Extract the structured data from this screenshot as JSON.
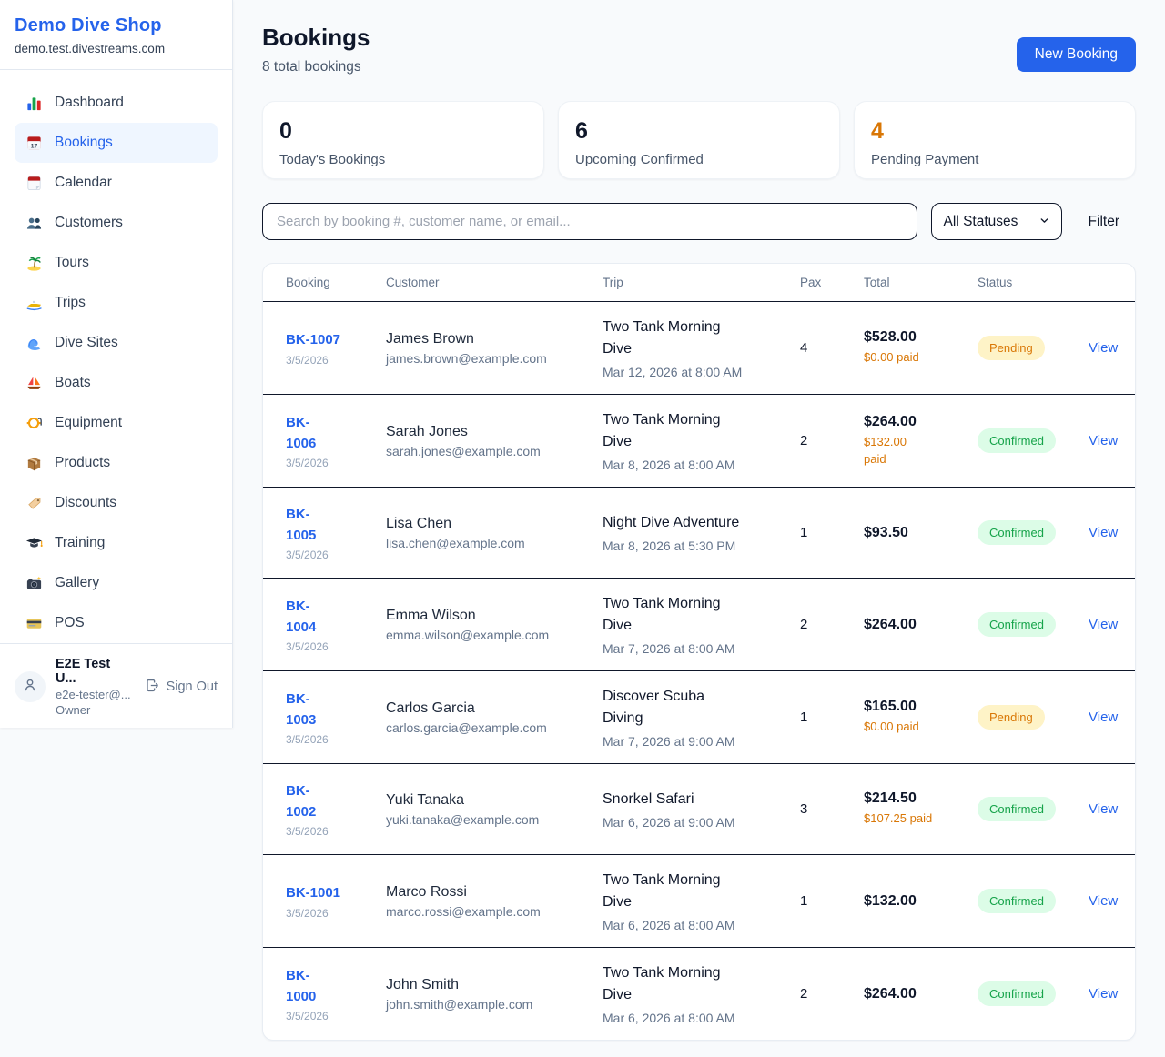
{
  "brand": {
    "name": "Demo Dive Shop",
    "domain": "demo.test.divestreams.com"
  },
  "sidebar": {
    "items": [
      {
        "label": "Dashboard",
        "icon": "bar-chart-icon",
        "active": false
      },
      {
        "label": "Bookings",
        "icon": "calendar-date-icon",
        "active": true
      },
      {
        "label": "Calendar",
        "icon": "tear-off-calendar-icon",
        "active": false
      },
      {
        "label": "Customers",
        "icon": "people-icon",
        "active": false
      },
      {
        "label": "Tours",
        "icon": "island-icon",
        "active": false
      },
      {
        "label": "Trips",
        "icon": "speedboat-icon",
        "active": false
      },
      {
        "label": "Dive Sites",
        "icon": "wave-icon",
        "active": false
      },
      {
        "label": "Boats",
        "icon": "sailboat-icon",
        "active": false
      },
      {
        "label": "Equipment",
        "icon": "diving-mask-icon",
        "active": false
      },
      {
        "label": "Products",
        "icon": "package-icon",
        "active": false
      },
      {
        "label": "Discounts",
        "icon": "tag-icon",
        "active": false
      },
      {
        "label": "Training",
        "icon": "graduation-cap-icon",
        "active": false
      },
      {
        "label": "Gallery",
        "icon": "camera-icon",
        "active": false
      },
      {
        "label": "POS",
        "icon": "credit-card-icon",
        "active": false
      }
    ],
    "user": {
      "name": "E2E Test U...",
      "email": "e2e-tester@...",
      "role": "Owner",
      "sign_out_label": "Sign Out"
    }
  },
  "header": {
    "title": "Bookings",
    "subtitle": "8 total bookings",
    "new_booking_label": "New Booking"
  },
  "stats": {
    "cards": [
      {
        "value": "0",
        "label": "Today's Bookings",
        "color": "#0f172a"
      },
      {
        "value": "6",
        "label": "Upcoming Confirmed",
        "color": "#0f172a"
      },
      {
        "value": "4",
        "label": "Pending Payment",
        "color": "#d97706"
      }
    ]
  },
  "filters": {
    "search_placeholder": "Search by booking #, customer name, or email...",
    "status_select_value": "All Statuses",
    "filter_label": "Filter"
  },
  "table": {
    "columns": [
      "Booking",
      "Customer",
      "Trip",
      "Pax",
      "Total",
      "Status"
    ],
    "view_label": "View",
    "paid_color": "#d97706",
    "statuses": {
      "Pending": {
        "bg": "#fef3c7",
        "text": "#d97706"
      },
      "Confirmed": {
        "bg": "#dcfce7",
        "text": "#16a34a"
      }
    },
    "rows": [
      {
        "id": "BK-1007",
        "id_wrap": false,
        "date": "3/5/2026",
        "customer": "James Brown",
        "email": "james.brown@example.com",
        "trip": "Two Tank Morning Dive",
        "trip_wrap": true,
        "trip_datetime": "Mar 12, 2026 at 8:00 AM",
        "pax": "4",
        "total": "$528.00",
        "paid": "$0.00 paid",
        "paid_wrap": false,
        "status": "Pending"
      },
      {
        "id": "BK-1006",
        "id_wrap": true,
        "date": "3/5/2026",
        "customer": "Sarah Jones",
        "email": "sarah.jones@example.com",
        "trip": "Two Tank Morning Dive",
        "trip_wrap": true,
        "trip_datetime": "Mar 8, 2026 at 8:00 AM",
        "pax": "2",
        "total": "$264.00",
        "paid": "$132.00 paid",
        "paid_wrap": true,
        "status": "Confirmed"
      },
      {
        "id": "BK-1005",
        "id_wrap": true,
        "date": "3/5/2026",
        "customer": "Lisa Chen",
        "email": "lisa.chen@example.com",
        "trip": "Night Dive Adventure",
        "trip_wrap": false,
        "trip_datetime": "Mar 8, 2026 at 5:30 PM",
        "pax": "1",
        "total": "$93.50",
        "paid": null,
        "paid_wrap": false,
        "status": "Confirmed"
      },
      {
        "id": "BK-1004",
        "id_wrap": true,
        "date": "3/5/2026",
        "customer": "Emma Wilson",
        "email": "emma.wilson@example.com",
        "trip": "Two Tank Morning Dive",
        "trip_wrap": true,
        "trip_datetime": "Mar 7, 2026 at 8:00 AM",
        "pax": "2",
        "total": "$264.00",
        "paid": null,
        "paid_wrap": false,
        "status": "Confirmed"
      },
      {
        "id": "BK-1003",
        "id_wrap": true,
        "date": "3/5/2026",
        "customer": "Carlos Garcia",
        "email": "carlos.garcia@example.com",
        "trip": "Discover Scuba Diving",
        "trip_wrap": true,
        "trip_datetime": "Mar 7, 2026 at 9:00 AM",
        "pax": "1",
        "total": "$165.00",
        "paid": "$0.00 paid",
        "paid_wrap": false,
        "status": "Pending"
      },
      {
        "id": "BK-1002",
        "id_wrap": true,
        "date": "3/5/2026",
        "customer": "Yuki Tanaka",
        "email": "yuki.tanaka@example.com",
        "trip": "Snorkel Safari",
        "trip_wrap": false,
        "trip_datetime": "Mar 6, 2026 at 9:00 AM",
        "pax": "3",
        "total": "$214.50",
        "paid": "$107.25 paid",
        "paid_wrap": false,
        "status": "Confirmed"
      },
      {
        "id": "BK-1001",
        "id_wrap": false,
        "date": "3/5/2026",
        "customer": "Marco Rossi",
        "email": "marco.rossi@example.com",
        "trip": "Two Tank Morning Dive",
        "trip_wrap": true,
        "trip_datetime": "Mar 6, 2026 at 8:00 AM",
        "pax": "1",
        "total": "$132.00",
        "paid": null,
        "paid_wrap": false,
        "status": "Confirmed"
      },
      {
        "id": "BK-1000",
        "id_wrap": true,
        "date": "3/5/2026",
        "customer": "John Smith",
        "email": "john.smith@example.com",
        "trip": "Two Tank Morning Dive",
        "trip_wrap": true,
        "trip_datetime": "Mar 6, 2026 at 8:00 AM",
        "pax": "2",
        "total": "$264.00",
        "paid": null,
        "paid_wrap": false,
        "status": "Confirmed"
      }
    ]
  },
  "colors": {
    "accent_blue": "#2563eb",
    "pending_orange": "#d97706",
    "confirmed_green": "#16a34a",
    "row_divider": "#0f172a",
    "page_bg": "#f8fafc"
  }
}
